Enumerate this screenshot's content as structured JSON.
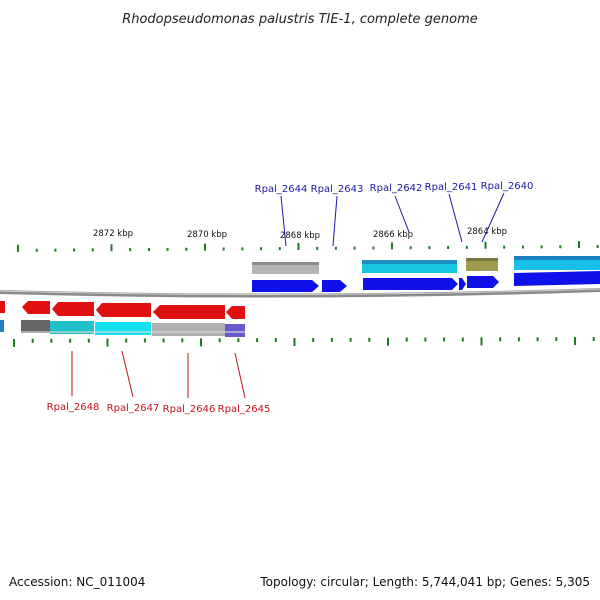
{
  "title": "Rhodopseudomonas palustris TIE-1, complete genome",
  "footer": {
    "accession": "Accession: NC_011004",
    "summary": "Topology: circular; Length: 5,744,041 bp; Genes: 5,305"
  },
  "scale_labels": [
    "2872 kbp",
    "2870 kbp",
    "2868 kbp",
    "2866 kbp",
    "2864 kbp"
  ],
  "gene_labels_top": [
    "Rpal_2644",
    "Rpal_2643",
    "Rpal_2642",
    "Rpal_2641",
    "Rpal_2640"
  ],
  "gene_labels_bottom": [
    "Rpal_2648",
    "Rpal_2647",
    "Rpal_2646",
    "Rpal_2645"
  ],
  "colors": {
    "top_label": "#1a1aa6",
    "bottom_label": "#c0141c",
    "tick": "#1e7a1e",
    "backbone": "#8a8a8a",
    "gene_blue": "#1010e8",
    "gene_red": "#e01010",
    "cyan": "#18c8d8",
    "gray": "#a8a8a8",
    "olive": "#a09a50",
    "steel": "#2090c8",
    "purple": "#6a5ad0",
    "dark_gray": "#666666"
  }
}
